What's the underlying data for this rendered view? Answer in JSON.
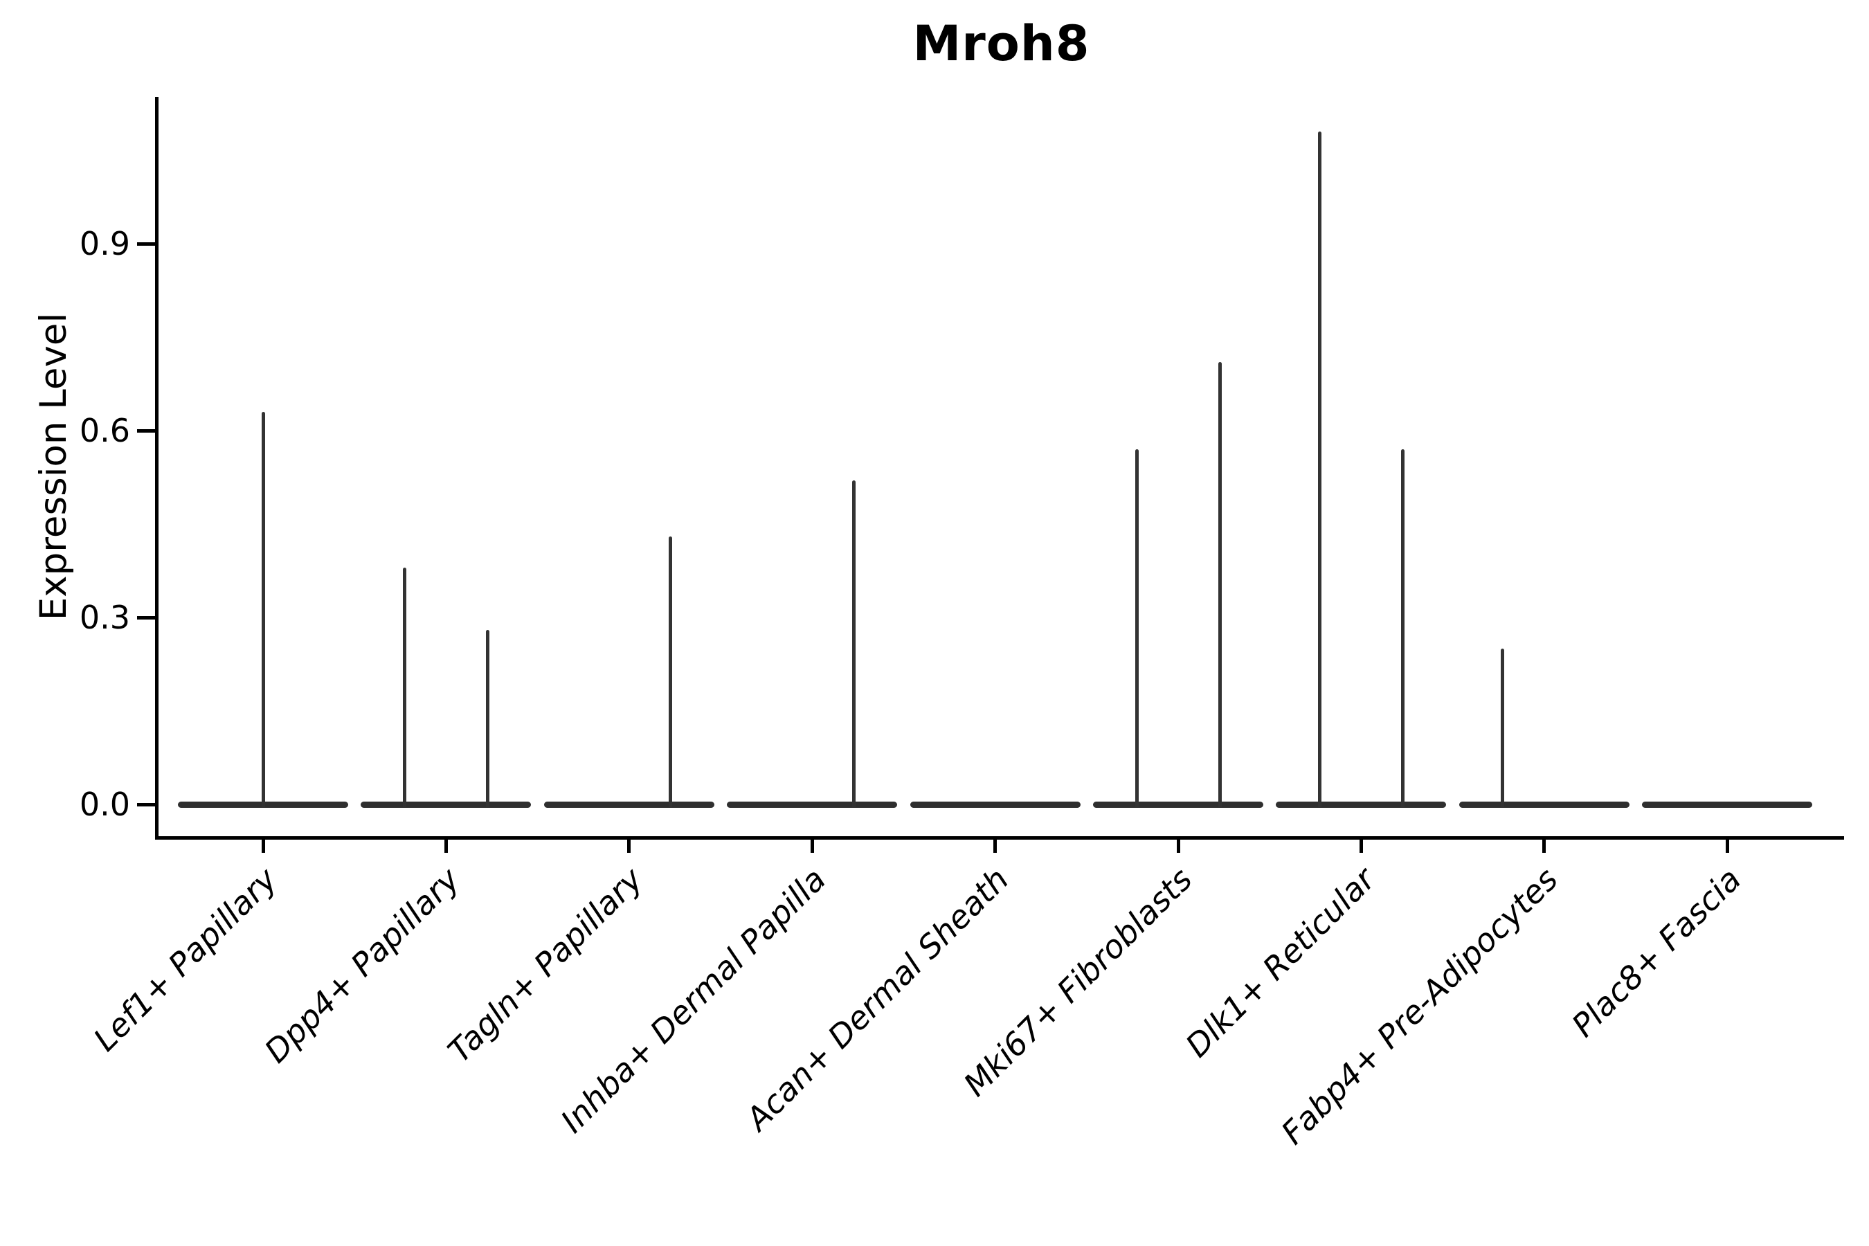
{
  "header": {
    "title": "Mroh8"
  },
  "axes": {
    "ylabel": "Expression Level",
    "ytick_labels": [
      "0.0",
      "0.3",
      "0.6",
      "0.9"
    ]
  },
  "chart_data": {
    "type": "violin",
    "title": "Mroh8",
    "xlabel": "",
    "ylabel": "Expression Level",
    "ylim": [
      -0.05,
      1.14
    ],
    "yticks": [
      0.0,
      0.3,
      0.6,
      0.9
    ],
    "ytick_labels": [
      "0.0",
      "0.3",
      "0.6",
      "0.9"
    ],
    "grid": false,
    "legend": false,
    "x_tick_label_rotation_deg": 45,
    "x_tick_label_style": "italic",
    "categories": [
      "Lef1+ Papillary",
      "Dpp4+ Papillary",
      "Tagln+ Papillary",
      "Inhba+ Dermal Papilla",
      "Acan+ Dermal Sheath",
      "Mki67+ Fibroblasts",
      "Dlk1+ Reticular",
      "Fabp4+ Pre-Adipocytes",
      "Plac8+ Fascia"
    ],
    "violins": [
      {
        "category": "Lef1+ Papillary",
        "baseline": 0.0,
        "spikes": [
          {
            "position": "center",
            "value": 0.63
          }
        ]
      },
      {
        "category": "Dpp4+ Papillary",
        "baseline": 0.0,
        "spikes": [
          {
            "position": "left",
            "value": 0.38
          },
          {
            "position": "right",
            "value": 0.28
          }
        ]
      },
      {
        "category": "Tagln+ Papillary",
        "baseline": 0.0,
        "spikes": [
          {
            "position": "right",
            "value": 0.43
          }
        ]
      },
      {
        "category": "Inhba+ Dermal Papilla",
        "baseline": 0.0,
        "spikes": [
          {
            "position": "right",
            "value": 0.52
          }
        ]
      },
      {
        "category": "Acan+ Dermal Sheath",
        "baseline": 0.0,
        "spikes": []
      },
      {
        "category": "Mki67+ Fibroblasts",
        "baseline": 0.0,
        "spikes": [
          {
            "position": "left",
            "value": 0.57
          },
          {
            "position": "right",
            "value": 0.71
          }
        ]
      },
      {
        "category": "Dlk1+ Reticular",
        "baseline": 0.0,
        "spikes": [
          {
            "position": "left",
            "value": 1.08
          },
          {
            "position": "right",
            "value": 0.57
          }
        ]
      },
      {
        "category": "Fabp4+ Pre-Adipocytes",
        "baseline": 0.0,
        "spikes": [
          {
            "position": "left",
            "value": 0.25
          }
        ]
      },
      {
        "category": "Plac8+ Fascia",
        "baseline": 0.0,
        "spikes": []
      }
    ],
    "colors": {
      "violin": "#333333",
      "axis": "#000000",
      "text": "#000000",
      "background": "#ffffff"
    }
  }
}
